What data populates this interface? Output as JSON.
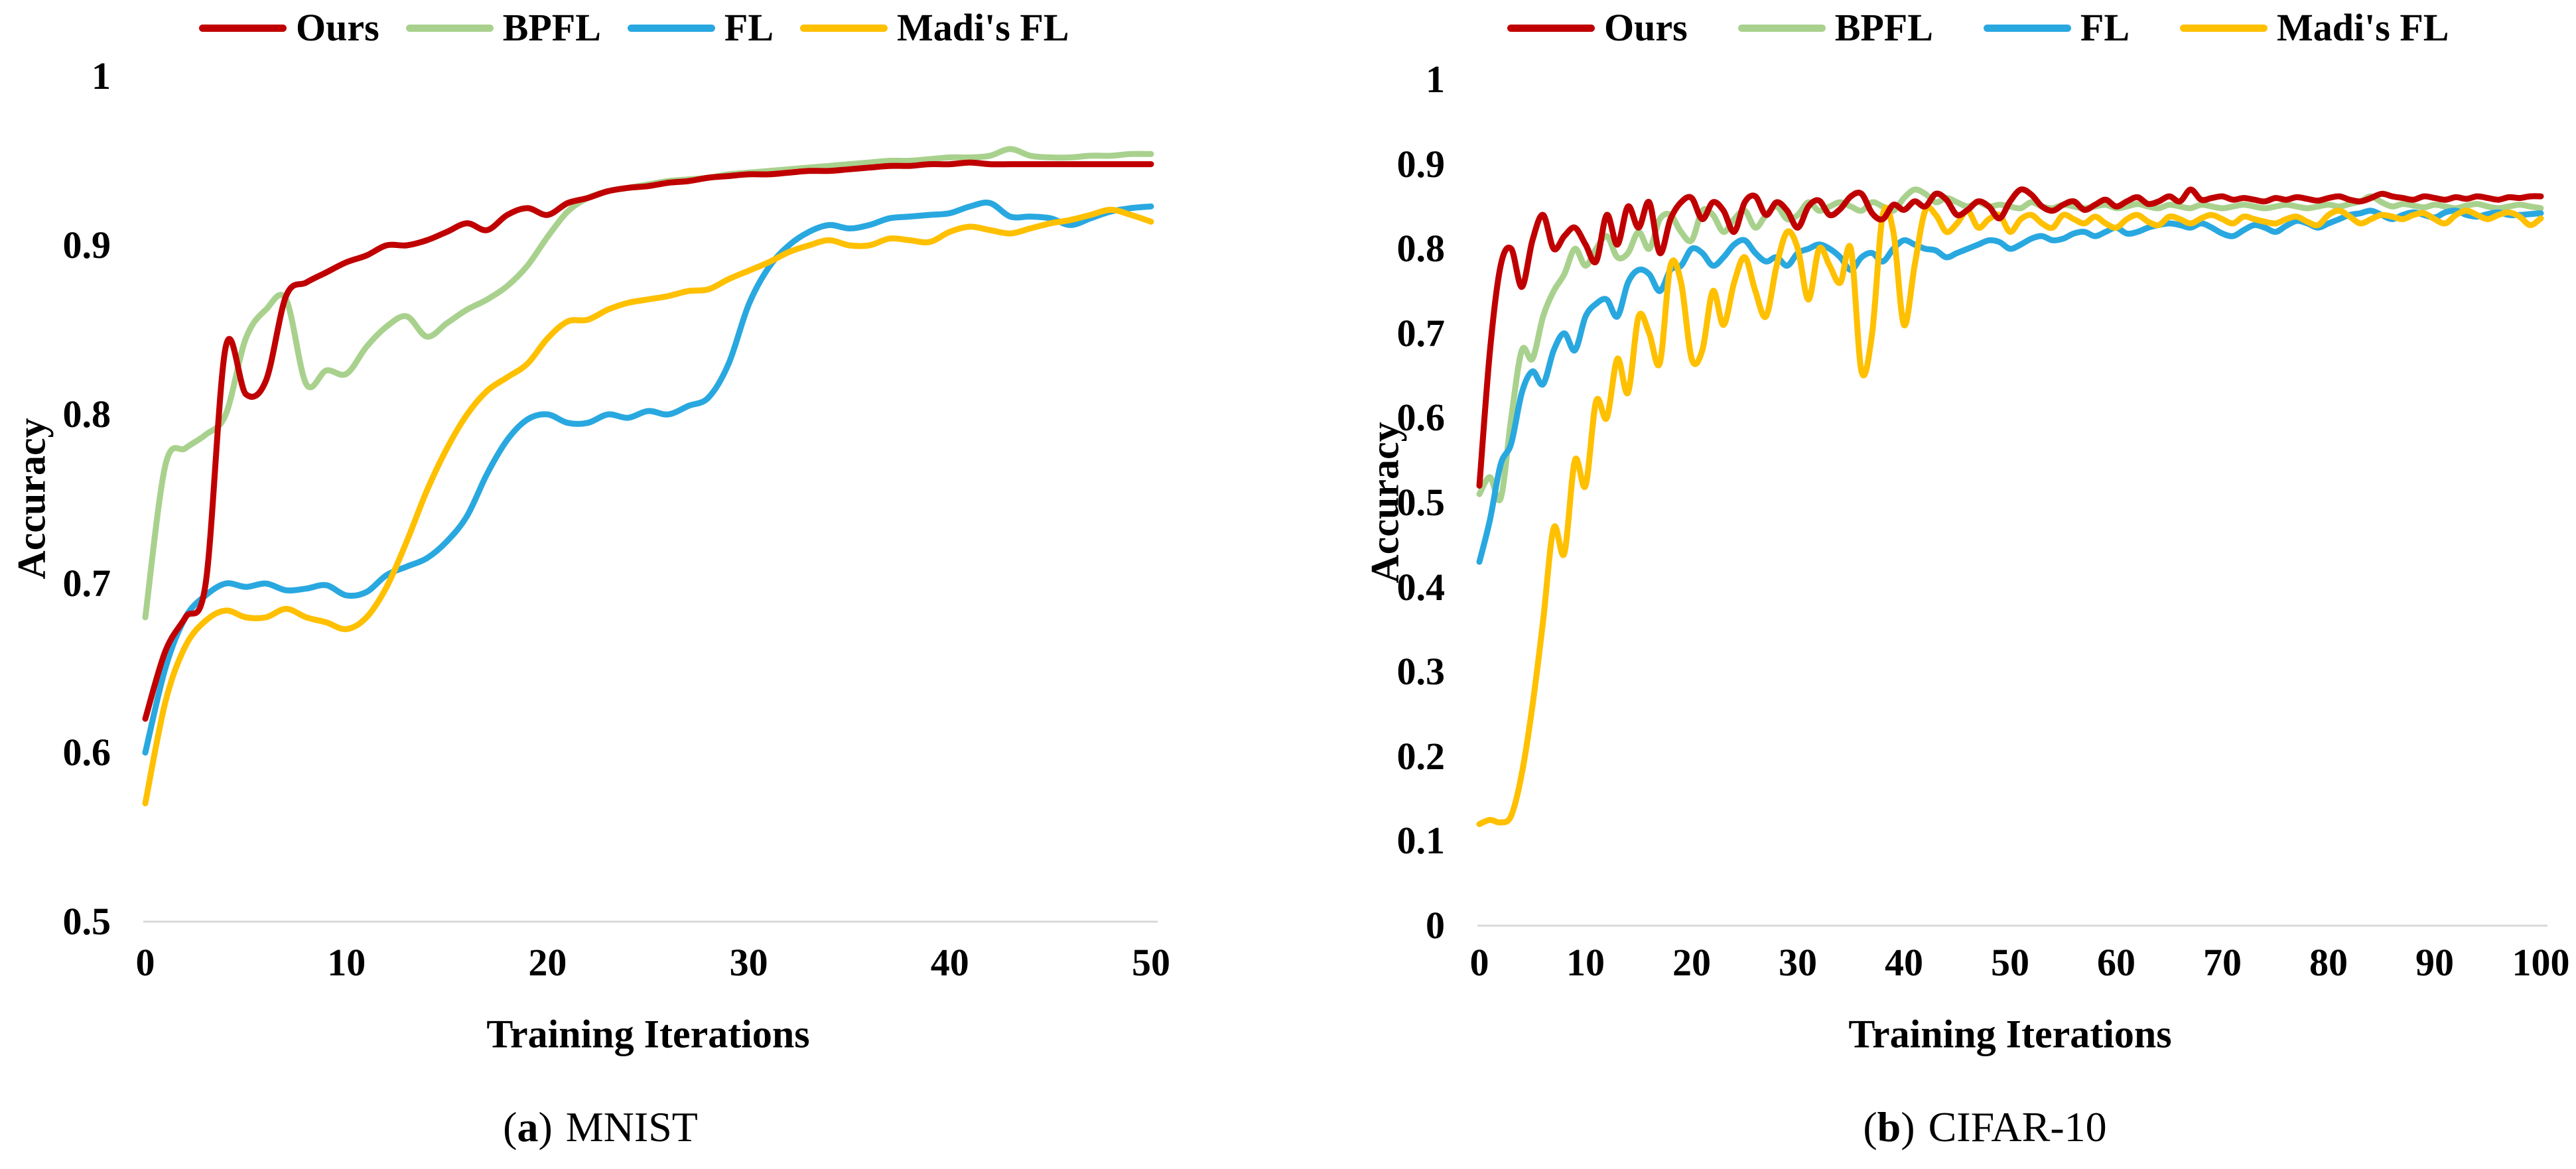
{
  "chart_data": [
    {
      "type": "line",
      "panel": "left",
      "caption": {
        "open": "(",
        "letter": "a",
        "close": ")",
        "label": "MNIST"
      },
      "xlabel": "Training Iterations",
      "ylabel": "Accuracy",
      "xlim": [
        0,
        50
      ],
      "ylim": [
        0.5,
        1.0
      ],
      "grid": false,
      "legend_position": "top",
      "baseline_color": "#d9d9d9",
      "x_ticks": [
        0,
        10,
        20,
        30,
        40,
        50
      ],
      "y_ticks": [
        {
          "v": 1.0,
          "t": "1"
        },
        {
          "v": 0.9,
          "t": "0.9"
        },
        {
          "v": 0.8,
          "t": "0.8"
        },
        {
          "v": 0.7,
          "t": "0.7"
        },
        {
          "v": 0.6,
          "t": "0.6"
        },
        {
          "v": 0.5,
          "t": "0.5"
        }
      ],
      "series": [
        {
          "name": "BPFL",
          "color": "#a9d18e",
          "values": [
            0.68,
            0.77,
            0.78,
            0.788,
            0.8,
            0.845,
            0.862,
            0.868,
            0.818,
            0.826,
            0.824,
            0.84,
            0.852,
            0.858,
            0.846,
            0.854,
            0.862,
            0.868,
            0.876,
            0.888,
            0.905,
            0.92,
            0.928,
            0.932,
            0.934,
            0.936,
            0.938,
            0.939,
            0.94,
            0.942,
            0.943,
            0.944,
            0.945,
            0.946,
            0.947,
            0.948,
            0.949,
            0.95,
            0.95,
            0.951,
            0.952,
            0.952,
            0.953,
            0.957,
            0.953,
            0.952,
            0.952,
            0.953,
            0.953,
            0.954,
            0.954
          ]
        },
        {
          "name": "FL",
          "color": "#29a8e0",
          "values": [
            0.6,
            0.65,
            0.68,
            0.693,
            0.7,
            0.698,
            0.7,
            0.696,
            0.697,
            0.699,
            0.693,
            0.695,
            0.705,
            0.71,
            0.715,
            0.725,
            0.74,
            0.765,
            0.785,
            0.797,
            0.8,
            0.795,
            0.795,
            0.8,
            0.798,
            0.802,
            0.8,
            0.805,
            0.81,
            0.83,
            0.865,
            0.887,
            0.9,
            0.908,
            0.912,
            0.91,
            0.912,
            0.916,
            0.917,
            0.918,
            0.919,
            0.923,
            0.925,
            0.917,
            0.917,
            0.916,
            0.912,
            0.916,
            0.92,
            0.922,
            0.923
          ]
        },
        {
          "name": "Madi's FL",
          "color": "#ffc000",
          "values": [
            0.57,
            0.63,
            0.663,
            0.678,
            0.684,
            0.68,
            0.68,
            0.685,
            0.68,
            0.677,
            0.673,
            0.68,
            0.698,
            0.725,
            0.755,
            0.78,
            0.8,
            0.814,
            0.822,
            0.83,
            0.845,
            0.855,
            0.856,
            0.862,
            0.866,
            0.868,
            0.87,
            0.873,
            0.874,
            0.88,
            0.885,
            0.89,
            0.896,
            0.9,
            0.903,
            0.9,
            0.9,
            0.904,
            0.903,
            0.902,
            0.908,
            0.911,
            0.909,
            0.907,
            0.91,
            0.913,
            0.915,
            0.918,
            0.921,
            0.918,
            0.914
          ]
        },
        {
          "name": "Ours",
          "color": "#c00000",
          "values": [
            0.62,
            0.66,
            0.68,
            0.7,
            0.84,
            0.812,
            0.82,
            0.87,
            0.878,
            0.884,
            0.89,
            0.894,
            0.9,
            0.9,
            0.903,
            0.908,
            0.913,
            0.909,
            0.918,
            0.922,
            0.918,
            0.925,
            0.928,
            0.932,
            0.934,
            0.935,
            0.937,
            0.938,
            0.94,
            0.941,
            0.942,
            0.942,
            0.943,
            0.944,
            0.944,
            0.945,
            0.946,
            0.947,
            0.947,
            0.948,
            0.948,
            0.949,
            0.948,
            0.948,
            0.948,
            0.948,
            0.948,
            0.948,
            0.948,
            0.948,
            0.948
          ]
        }
      ],
      "legend_order": [
        "Ours",
        "BPFL",
        "FL",
        "Madi's FL"
      ]
    },
    {
      "type": "line",
      "panel": "right",
      "caption": {
        "open": "(",
        "letter": "b",
        "close": ")",
        "label": "CIFAR-10"
      },
      "xlabel": "Training Iterations",
      "ylabel": "Accuracy",
      "xlim": [
        0,
        100
      ],
      "ylim": [
        0.0,
        1.0
      ],
      "grid": false,
      "legend_position": "top",
      "baseline_color": "#d9d9d9",
      "x_ticks": [
        0,
        10,
        20,
        30,
        40,
        50,
        60,
        70,
        80,
        90,
        100
      ],
      "y_ticks": [
        {
          "v": 1.0,
          "t": "1"
        },
        {
          "v": 0.9,
          "t": "0.9"
        },
        {
          "v": 0.8,
          "t": "0.8"
        },
        {
          "v": 0.7,
          "t": "0.7"
        },
        {
          "v": 0.6,
          "t": "0.6"
        },
        {
          "v": 0.5,
          "t": "0.5"
        },
        {
          "v": 0.4,
          "t": "0.4"
        },
        {
          "v": 0.3,
          "t": "0.3"
        },
        {
          "v": 0.2,
          "t": "0.2"
        },
        {
          "v": 0.1,
          "t": "0.1"
        },
        {
          "v": 0.0,
          "t": "0"
        }
      ],
      "series": [
        {
          "name": "BPFL",
          "color": "#a9d18e",
          "values": [
            0.51,
            0.53,
            0.505,
            0.6,
            0.68,
            0.67,
            0.72,
            0.75,
            0.77,
            0.8,
            0.78,
            0.8,
            0.815,
            0.79,
            0.795,
            0.82,
            0.8,
            0.835,
            0.84,
            0.82,
            0.81,
            0.845,
            0.84,
            0.82,
            0.835,
            0.845,
            0.825,
            0.84,
            0.85,
            0.835,
            0.84,
            0.855,
            0.845,
            0.85,
            0.855,
            0.85,
            0.845,
            0.855,
            0.85,
            0.845,
            0.86,
            0.87,
            0.865,
            0.855,
            0.86,
            0.855,
            0.85,
            0.855,
            0.85,
            0.852,
            0.85,
            0.848,
            0.855,
            0.85,
            0.848,
            0.852,
            0.85,
            0.848,
            0.85,
            0.852,
            0.848,
            0.85,
            0.853,
            0.85,
            0.848,
            0.852,
            0.85,
            0.848,
            0.852,
            0.85,
            0.848,
            0.85,
            0.852,
            0.85,
            0.848,
            0.85,
            0.852,
            0.85,
            0.848,
            0.85,
            0.852,
            0.85,
            0.853,
            0.856,
            0.862,
            0.855,
            0.85,
            0.853,
            0.851,
            0.849,
            0.852,
            0.85,
            0.848,
            0.851,
            0.853,
            0.85,
            0.848,
            0.85,
            0.852,
            0.85,
            0.848
          ]
        },
        {
          "name": "FL",
          "color": "#29a8e0",
          "values": [
            0.43,
            0.48,
            0.545,
            0.57,
            0.63,
            0.655,
            0.64,
            0.68,
            0.7,
            0.68,
            0.72,
            0.735,
            0.74,
            0.72,
            0.76,
            0.775,
            0.77,
            0.75,
            0.775,
            0.78,
            0.8,
            0.795,
            0.78,
            0.79,
            0.805,
            0.81,
            0.795,
            0.785,
            0.79,
            0.78,
            0.795,
            0.8,
            0.805,
            0.8,
            0.79,
            0.775,
            0.79,
            0.795,
            0.785,
            0.8,
            0.81,
            0.805,
            0.8,
            0.798,
            0.79,
            0.795,
            0.8,
            0.805,
            0.81,
            0.808,
            0.8,
            0.805,
            0.812,
            0.815,
            0.81,
            0.812,
            0.818,
            0.82,
            0.815,
            0.82,
            0.825,
            0.818,
            0.82,
            0.825,
            0.828,
            0.83,
            0.828,
            0.825,
            0.83,
            0.825,
            0.818,
            0.815,
            0.822,
            0.828,
            0.825,
            0.82,
            0.827,
            0.833,
            0.83,
            0.825,
            0.83,
            0.835,
            0.84,
            0.842,
            0.845,
            0.84,
            0.835,
            0.84,
            0.843,
            0.84,
            0.837,
            0.843,
            0.845,
            0.84,
            0.838,
            0.841,
            0.843,
            0.84,
            0.84,
            0.841,
            0.842
          ]
        },
        {
          "name": "Madi's FL",
          "color": "#ffc000",
          "values": [
            0.12,
            0.125,
            0.122,
            0.13,
            0.18,
            0.26,
            0.36,
            0.47,
            0.44,
            0.55,
            0.52,
            0.62,
            0.6,
            0.67,
            0.63,
            0.72,
            0.7,
            0.665,
            0.78,
            0.76,
            0.67,
            0.68,
            0.75,
            0.71,
            0.76,
            0.79,
            0.75,
            0.72,
            0.78,
            0.82,
            0.8,
            0.74,
            0.8,
            0.78,
            0.76,
            0.8,
            0.655,
            0.7,
            0.84,
            0.82,
            0.71,
            0.78,
            0.845,
            0.84,
            0.82,
            0.83,
            0.845,
            0.825,
            0.835,
            0.84,
            0.82,
            0.835,
            0.84,
            0.83,
            0.825,
            0.84,
            0.835,
            0.83,
            0.838,
            0.83,
            0.825,
            0.835,
            0.84,
            0.832,
            0.828,
            0.838,
            0.835,
            0.83,
            0.836,
            0.84,
            0.835,
            0.83,
            0.838,
            0.835,
            0.832,
            0.83,
            0.835,
            0.838,
            0.832,
            0.828,
            0.84,
            0.845,
            0.838,
            0.83,
            0.835,
            0.84,
            0.838,
            0.835,
            0.84,
            0.842,
            0.835,
            0.83,
            0.84,
            0.845,
            0.84,
            0.835,
            0.84,
            0.843,
            0.838,
            0.828,
            0.836
          ]
        },
        {
          "name": "Ours",
          "color": "#c00000",
          "values": [
            0.52,
            0.68,
            0.78,
            0.8,
            0.755,
            0.81,
            0.84,
            0.8,
            0.815,
            0.825,
            0.805,
            0.785,
            0.84,
            0.805,
            0.85,
            0.825,
            0.855,
            0.795,
            0.835,
            0.855,
            0.86,
            0.835,
            0.855,
            0.845,
            0.82,
            0.855,
            0.862,
            0.84,
            0.855,
            0.845,
            0.825,
            0.85,
            0.857,
            0.84,
            0.847,
            0.862,
            0.865,
            0.842,
            0.835,
            0.852,
            0.846,
            0.856,
            0.85,
            0.865,
            0.858,
            0.84,
            0.846,
            0.856,
            0.85,
            0.836,
            0.856,
            0.87,
            0.864,
            0.85,
            0.845,
            0.852,
            0.856,
            0.846,
            0.852,
            0.858,
            0.85,
            0.856,
            0.861,
            0.853,
            0.856,
            0.862,
            0.856,
            0.87,
            0.858,
            0.86,
            0.862,
            0.858,
            0.86,
            0.858,
            0.856,
            0.86,
            0.858,
            0.861,
            0.859,
            0.857,
            0.86,
            0.862,
            0.858,
            0.856,
            0.86,
            0.865,
            0.862,
            0.86,
            0.858,
            0.862,
            0.86,
            0.858,
            0.861,
            0.859,
            0.862,
            0.86,
            0.858,
            0.861,
            0.86,
            0.862,
            0.862
          ]
        }
      ],
      "legend_order": [
        "Ours",
        "BPFL",
        "FL",
        "Madi's FL"
      ]
    }
  ]
}
